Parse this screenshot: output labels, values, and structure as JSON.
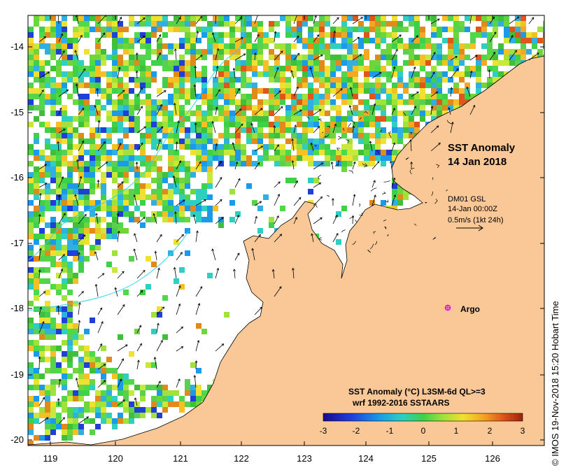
{
  "map": {
    "title_line1": "SST Anomaly",
    "title_line2": "14 Jan 2018",
    "current_info": {
      "line1": "DM01 GSL",
      "line2": "14-Jan 00:00Z",
      "line3": "0.5m/s (1kt 24h)"
    },
    "argo_label": "Argo",
    "colorbar": {
      "title_line1": "SST Anomaly (°C) L3SM-6d QL>=3",
      "title_line2": "wrf 1992-2016 SSTAARS",
      "ticks": [
        "-3",
        "-2",
        "-1",
        "0",
        "1",
        "2",
        "3"
      ],
      "colors": [
        "#1a0a8c",
        "#1f3fd9",
        "#1a9ae8",
        "#2ecfc0",
        "#3fd04a",
        "#9fe23a",
        "#f0e030",
        "#f5a623",
        "#e0561a",
        "#a0200d"
      ]
    },
    "credit": "© IMOS 19-Nov-2018 15:20 Hobart Time",
    "lat_ticks": [
      "-14",
      "-15",
      "-16",
      "-17",
      "-18",
      "-19",
      "-20"
    ],
    "lon_ticks": [
      "119",
      "120",
      "121",
      "122",
      "123",
      "124",
      "125",
      "126"
    ],
    "colors": {
      "land": "#f9c896",
      "ocean": "#ffffff",
      "argo": "#e000e0"
    }
  }
}
